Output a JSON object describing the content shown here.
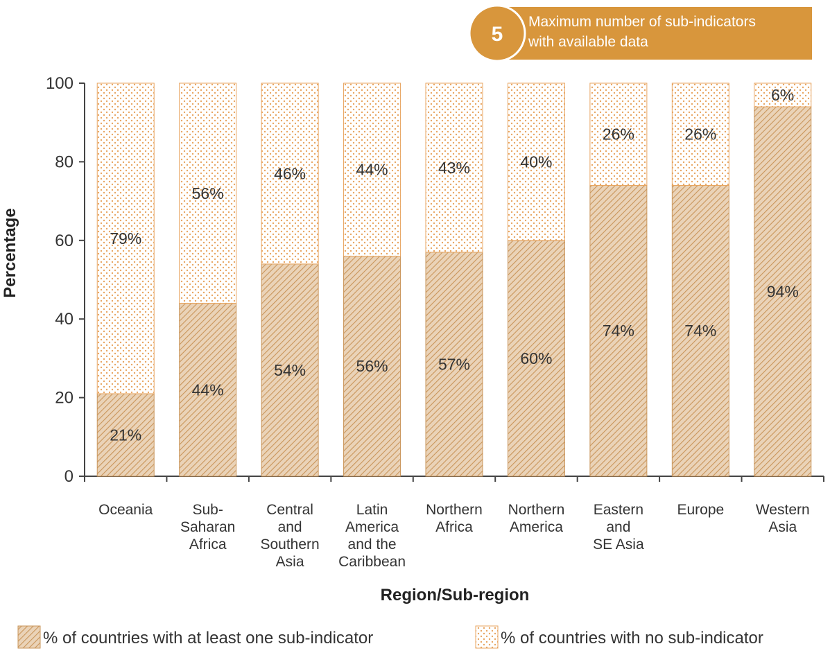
{
  "banner": {
    "number": "5",
    "line1": "Maximum number of sub-indicators",
    "line2": "with available data"
  },
  "colors": {
    "accent": "#D8963C",
    "hatch_line": "#C9955A",
    "dot": "#E8A662",
    "axis": "#444444",
    "text": "#333333"
  },
  "chart_data": {
    "type": "bar",
    "stacked": true,
    "xlabel": "Region/Sub-region",
    "ylabel": "Percentage",
    "ylim": [
      0,
      100
    ],
    "yticks": [
      0,
      20,
      40,
      60,
      80,
      100
    ],
    "grid": false,
    "legend_position": "bottom",
    "categories": [
      [
        "Oceania"
      ],
      [
        "Sub-",
        "Saharan",
        "Africa"
      ],
      [
        "Central",
        "and",
        "Southern",
        "Asia"
      ],
      [
        "Latin",
        "America",
        "and the",
        "Caribbean"
      ],
      [
        "Northern",
        "Africa"
      ],
      [
        "Northern",
        "America"
      ],
      [
        "Eastern",
        "and",
        "SE Asia"
      ],
      [
        "Europe"
      ],
      [
        "Western",
        "Asia"
      ]
    ],
    "series": [
      {
        "name": "% of countries with at least one sub-indicator",
        "values": [
          21,
          44,
          54,
          56,
          57,
          60,
          74,
          74,
          94
        ],
        "labels": [
          "21%",
          "44%",
          "54%",
          "56%",
          "57%",
          "60%",
          "74%",
          "74%",
          "94%"
        ],
        "pattern": "hatch"
      },
      {
        "name": "% of countries with no sub-indicator",
        "values": [
          79,
          56,
          46,
          44,
          43,
          40,
          26,
          26,
          6
        ],
        "labels": [
          "79%",
          "56%",
          "46%",
          "44%",
          "43%",
          "40%",
          "26%",
          "26%",
          "6%"
        ],
        "pattern": "dots"
      }
    ]
  }
}
